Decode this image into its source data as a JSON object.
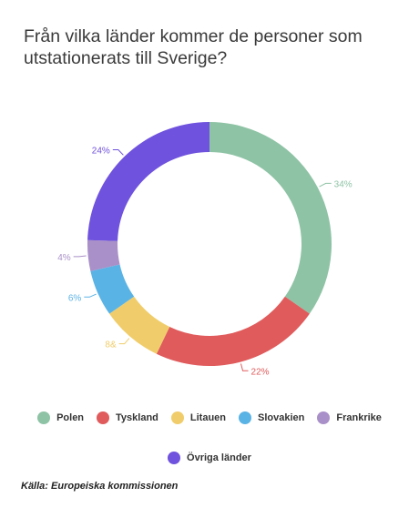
{
  "chart_data": {
    "type": "pie",
    "variant": "donut",
    "title": "Från vilka länder kommer de personer som utstationerats till Sverige?",
    "categories": [
      "Polen",
      "Tyskland",
      "Litauen",
      "Slovakien",
      "Frankrike",
      "Övriga länder"
    ],
    "values": [
      34,
      22,
      8,
      6,
      4,
      24
    ],
    "data_labels": [
      "34%",
      "22%",
      "8&",
      "6%",
      "4%",
      "24%"
    ],
    "colors": [
      "#8ec3a5",
      "#e05b5c",
      "#f0cd6a",
      "#5ab3e5",
      "#a990c8",
      "#6f52dd"
    ],
    "legend_position": "bottom"
  },
  "source": "Källa: Europeiska kommissionen"
}
